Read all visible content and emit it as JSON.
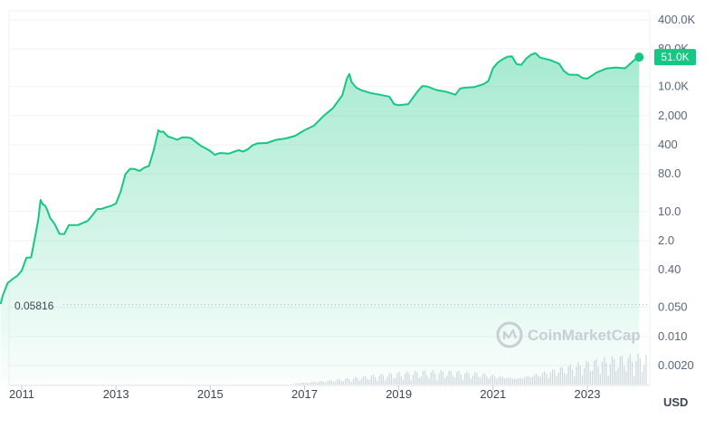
{
  "chart_data": {
    "type": "area",
    "x_unit": "year",
    "y_scale": "log",
    "ylim": [
      0.001,
      400000
    ],
    "y_ticks": [
      {
        "label": "400.0K",
        "value": 400000
      },
      {
        "label": "80.0K",
        "value": 80000
      },
      {
        "label": "10.0K",
        "value": 10000
      },
      {
        "label": "2,000",
        "value": 2000
      },
      {
        "label": "400",
        "value": 400
      },
      {
        "label": "80.0",
        "value": 80
      },
      {
        "label": "10.0",
        "value": 10
      },
      {
        "label": "2.0",
        "value": 2
      },
      {
        "label": "0.40",
        "value": 0.4
      },
      {
        "label": "0.050",
        "value": 0.05
      },
      {
        "label": "0.010",
        "value": 0.01
      },
      {
        "label": "0.0020",
        "value": 0.002
      }
    ],
    "x_ticks": [
      "2011",
      "2013",
      "2015",
      "2017",
      "2019",
      "2021",
      "2023"
    ],
    "currency_label": "USD",
    "first_price_label": "0.05816",
    "first_price_value": 0.05816,
    "last_price_label": "51.0K",
    "last_price_value": 51000,
    "watermark": "CoinMarketCap",
    "colors": {
      "line": "#16c784",
      "fill_top": "#16c784",
      "grid": "#eff2f5",
      "volume": "#d3d8df",
      "axis_text": "#58667e"
    },
    "series": [
      {
        "x": [
          2010.55,
          2010.6,
          2010.7,
          2010.8,
          2010.9,
          2011.0,
          2011.1,
          2011.2,
          2011.3,
          2011.35,
          2011.4,
          2011.45,
          2011.5,
          2011.55,
          2011.6,
          2011.7,
          2011.8,
          2011.9,
          2012.0,
          2012.1,
          2012.2,
          2012.3,
          2012.4,
          2012.5,
          2012.6,
          2012.7,
          2012.8,
          2012.9,
          2013.0,
          2013.1,
          2013.2,
          2013.3,
          2013.4,
          2013.5,
          2013.6,
          2013.7,
          2013.8,
          2013.9,
          2013.95,
          2014.0,
          2014.1,
          2014.2,
          2014.3,
          2014.4,
          2014.5,
          2014.6,
          2014.7,
          2014.8,
          2014.9,
          2015.0,
          2015.1,
          2015.2,
          2015.3,
          2015.4,
          2015.5,
          2015.6,
          2015.7,
          2015.8,
          2015.9,
          2016.0,
          2016.2,
          2016.4,
          2016.6,
          2016.8,
          2017.0,
          2017.2,
          2017.4,
          2017.6,
          2017.8,
          2017.9,
          2017.95,
          2018.0,
          2018.1,
          2018.2,
          2018.4,
          2018.6,
          2018.8,
          2018.9,
          2019.0,
          2019.2,
          2019.4,
          2019.5,
          2019.6,
          2019.8,
          2020.0,
          2020.2,
          2020.3,
          2020.4,
          2020.6,
          2020.8,
          2020.9,
          2021.0,
          2021.1,
          2021.2,
          2021.3,
          2021.4,
          2021.5,
          2021.6,
          2021.7,
          2021.8,
          2021.9,
          2022.0,
          2022.2,
          2022.4,
          2022.5,
          2022.6,
          2022.8,
          2022.9,
          2023.0,
          2023.2,
          2023.4,
          2023.6,
          2023.8,
          2024.0,
          2024.1
        ],
        "y": [
          0.06,
          0.1,
          0.2,
          0.25,
          0.3,
          0.4,
          0.8,
          0.8,
          3,
          6,
          18,
          14,
          13,
          10,
          7,
          5,
          3,
          3,
          5,
          5,
          5,
          5.5,
          6,
          8,
          11,
          11,
          12,
          13,
          15,
          30,
          80,
          110,
          110,
          100,
          120,
          130,
          300,
          900,
          800,
          800,
          600,
          550,
          500,
          580,
          600,
          580,
          480,
          400,
          350,
          300,
          240,
          260,
          250,
          240,
          260,
          280,
          260,
          300,
          380,
          430,
          450,
          550,
          600,
          700,
          950,
          1200,
          2000,
          3000,
          6000,
          15000,
          19000,
          12000,
          9000,
          8000,
          7000,
          6500,
          6000,
          4000,
          3800,
          4000,
          8000,
          10500,
          10000,
          8000,
          7200,
          6000,
          8500,
          9000,
          9500,
          11500,
          14000,
          29000,
          40000,
          48000,
          55000,
          55000,
          35000,
          33000,
          45000,
          55000,
          60000,
          47000,
          42000,
          35000,
          24000,
          20000,
          20000,
          17000,
          16500,
          23000,
          28000,
          29000,
          27000,
          42000,
          51000
        ]
      }
    ],
    "volume_note": "Volume bars shown along the bottom of the chart (values not labelled)."
  }
}
